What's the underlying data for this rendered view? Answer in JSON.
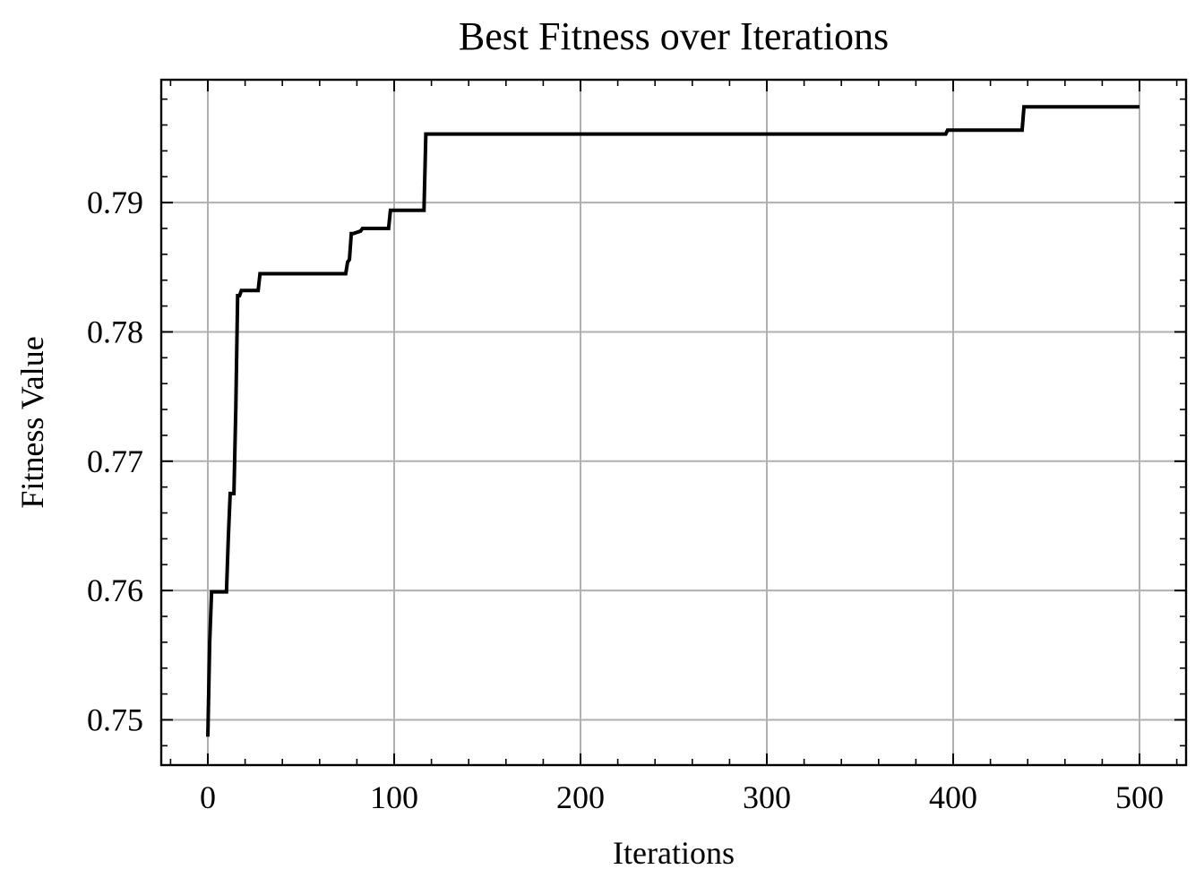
{
  "chart_data": {
    "type": "line",
    "title": "Best Fitness over Iterations",
    "xlabel": "Iterations",
    "ylabel": "Fitness Value",
    "xlim": [
      -25,
      525
    ],
    "ylim": [
      0.7465,
      0.7995
    ],
    "xticks": [
      0,
      100,
      200,
      300,
      400,
      500
    ],
    "xtick_labels": [
      "0",
      "100",
      "200",
      "300",
      "400",
      "500"
    ],
    "yticks": [
      0.75,
      0.76,
      0.77,
      0.78,
      0.79
    ],
    "ytick_labels": [
      "0.75",
      "0.76",
      "0.77",
      "0.78",
      "0.79"
    ],
    "x_minor_step": 20,
    "y_minor_step": 0.002,
    "grid": true,
    "line_color": "#000000",
    "grid_color": "#b0b0b0",
    "series": [
      {
        "x": [
          0,
          1,
          2,
          10,
          11,
          12,
          14,
          15,
          16,
          17,
          18,
          27,
          28,
          74,
          75,
          76,
          77,
          78,
          82,
          83,
          97,
          98,
          116,
          117,
          396,
          397,
          437,
          438,
          500
        ],
        "y": [
          0.7487,
          0.756,
          0.7599,
          0.7599,
          0.7641,
          0.7675,
          0.7675,
          0.774,
          0.7828,
          0.7828,
          0.7832,
          0.7832,
          0.7845,
          0.7845,
          0.7854,
          0.7856,
          0.7876,
          0.7876,
          0.7878,
          0.788,
          0.788,
          0.7894,
          0.7894,
          0.7953,
          0.7953,
          0.7956,
          0.7956,
          0.7974,
          0.7974
        ]
      }
    ]
  }
}
